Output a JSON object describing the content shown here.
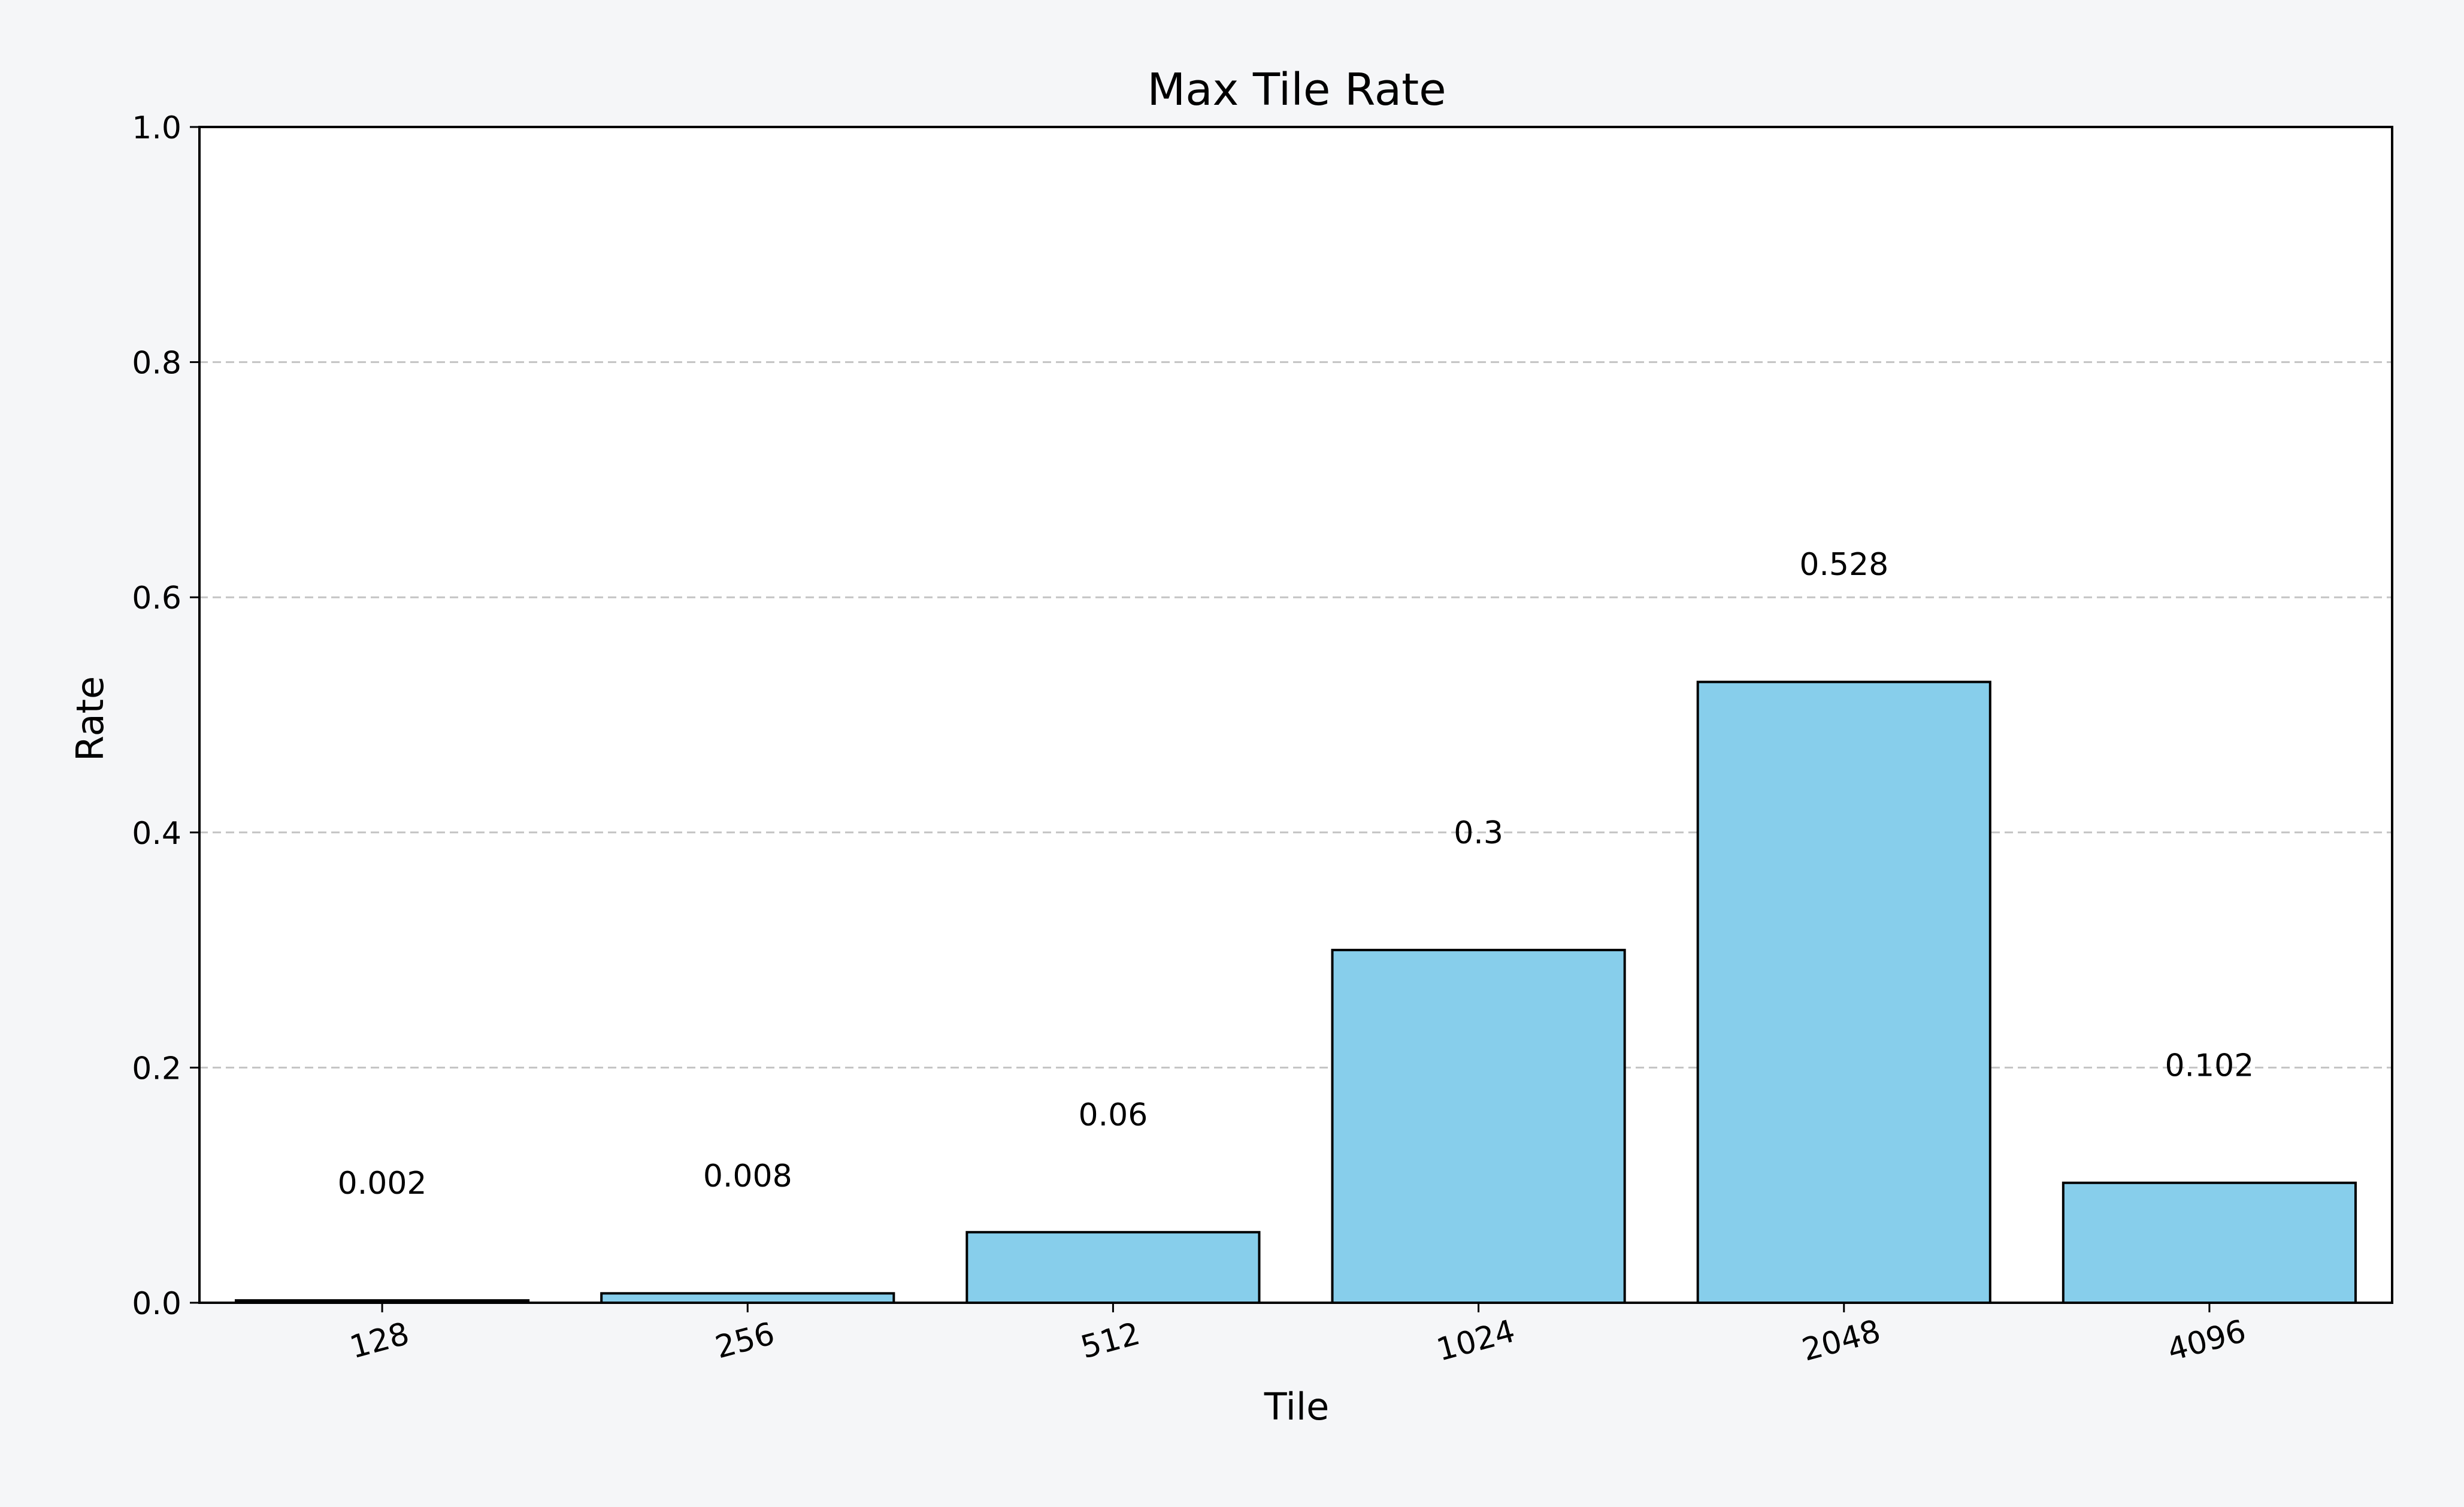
{
  "chart_data": {
    "type": "bar",
    "title": "Max Tile Rate",
    "xlabel": "Tile",
    "ylabel": "Rate",
    "categories": [
      "128",
      "256",
      "512",
      "1024",
      "2048",
      "4096"
    ],
    "values": [
      0.002,
      0.008,
      0.06,
      0.3,
      0.528,
      0.102
    ],
    "value_labels": [
      "0.002",
      "0.008",
      "0.06",
      "0.3",
      "0.528",
      "0.102"
    ],
    "ylim": [
      0,
      1.0
    ],
    "yticks": [
      0.0,
      0.2,
      0.4,
      0.6,
      0.8,
      1.0
    ],
    "ytick_labels": [
      "0.0",
      "0.2",
      "0.4",
      "0.6",
      "0.8",
      "1.0"
    ],
    "grid": "horizontal dashed",
    "legend": "none",
    "colors": {
      "bar_fill": "#87ceeb",
      "bar_edge": "#000000",
      "grid": "#c4c4c4",
      "plot_background": "#ffffff",
      "figure_background": "#f5f6f8"
    }
  }
}
